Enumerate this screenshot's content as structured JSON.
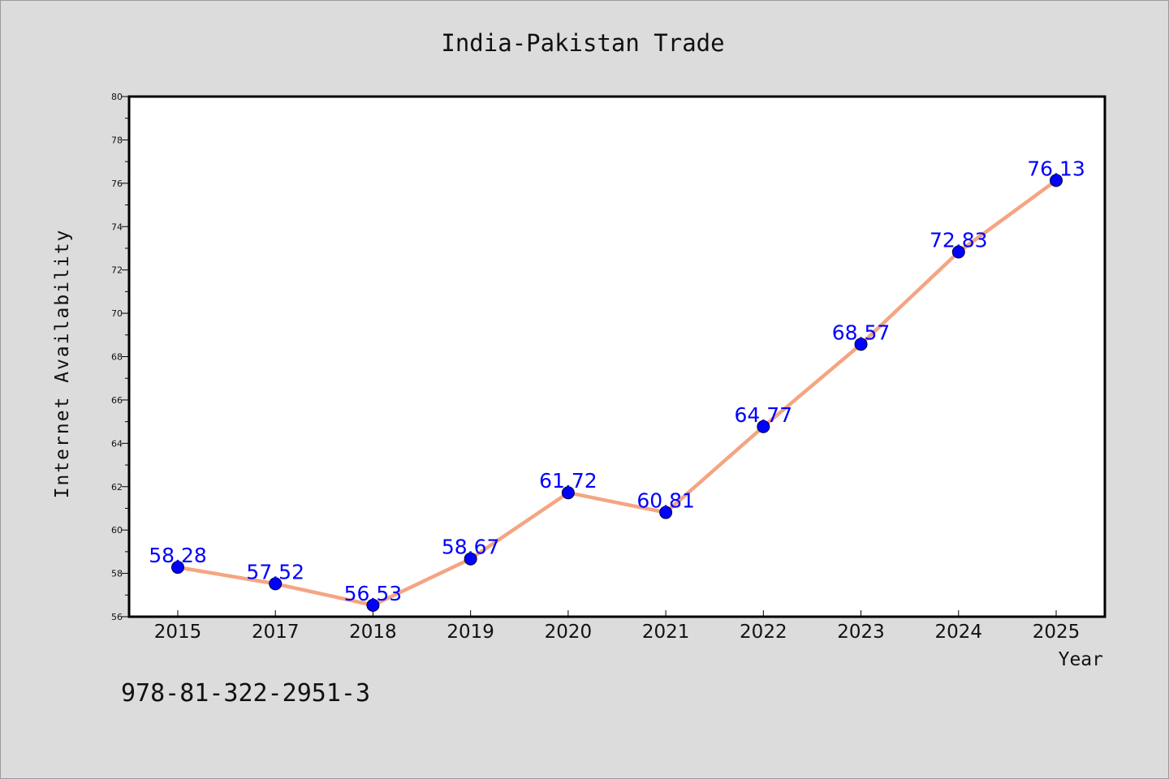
{
  "colors": {
    "background": "#dcdcdc",
    "plot_background": "#ffffff",
    "line": "#f4a582",
    "marker": "#0000ff",
    "data_label": "#0000ff"
  },
  "footer": {
    "code": "978-81-322-2951-3"
  },
  "chart_data": {
    "type": "line",
    "title": "India-Pakistan Trade",
    "xlabel": "Year",
    "ylabel": "Internet Availability",
    "categories": [
      "2015",
      "2017",
      "2018",
      "2019",
      "2020",
      "2021",
      "2022",
      "2023",
      "2024",
      "2025"
    ],
    "series": [
      {
        "values": [
          58.28,
          57.52,
          56.53,
          58.67,
          61.72,
          60.81,
          64.77,
          68.57,
          72.83,
          76.13
        ],
        "labels": [
          "58.28",
          "57.52",
          "56.53",
          "58.67",
          "61.72",
          "60.81",
          "64.77",
          "68.57",
          "72.83",
          "76.13"
        ]
      }
    ],
    "ylim": [
      56,
      80
    ],
    "yticks": [
      "56",
      "58",
      "60",
      "62",
      "64",
      "66",
      "68",
      "70",
      "72",
      "74",
      "76",
      "78",
      "80"
    ],
    "grid": false,
    "legend": "none",
    "markers": true,
    "data_labels": true
  }
}
